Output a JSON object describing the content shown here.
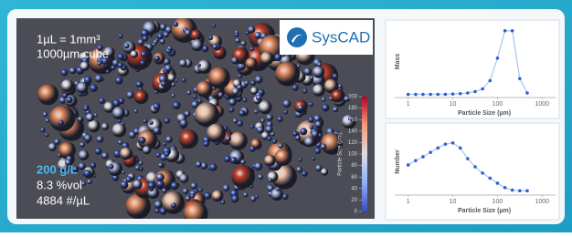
{
  "render": {
    "texts": {
      "volume": "1µL = 1mm³",
      "cube": "1000µm cube",
      "logo": "SysCAD",
      "concentration": "200 g/L",
      "volume_fraction": "8.3 %vol",
      "count": "4884 #/µL"
    },
    "colorbar": {
      "label": "Particle Size (µm)",
      "lim": [
        0,
        200
      ],
      "ticks": [
        0,
        20,
        40,
        60,
        80,
        100,
        120,
        140,
        160,
        180,
        200
      ]
    }
  },
  "chart_data": [
    {
      "type": "line",
      "y_label": "Mass",
      "x_label": "Particle Size (µm)",
      "log_x": true,
      "color": "#2f5fcf",
      "line_color": "#a9c3ef",
      "x": [
        1,
        1.47,
        2.15,
        3.16,
        4.64,
        6.81,
        10,
        14.7,
        21.5,
        31.6,
        46.4,
        68.1,
        100,
        147,
        215,
        316,
        464
      ],
      "values": [
        2,
        2,
        2,
        2,
        2,
        2,
        2.5,
        3,
        4,
        6,
        10,
        22,
        55,
        95,
        95,
        25,
        4
      ],
      "xlim": [
        0.5,
        2000
      ],
      "ylim": [
        0,
        100
      ],
      "xticks": [
        1,
        10,
        100,
        1000
      ]
    },
    {
      "type": "line",
      "y_label": "Number",
      "x_label": "Particle Size (µm)",
      "log_x": true,
      "color": "#2f5fcf",
      "line_color": "#a9c3ef",
      "x": [
        1,
        1.47,
        2.15,
        3.16,
        4.64,
        6.81,
        10,
        14.7,
        21.5,
        31.6,
        46.4,
        68.1,
        100,
        147,
        215,
        316,
        464
      ],
      "values": [
        45,
        52,
        58,
        65,
        72,
        78,
        80,
        72,
        55,
        42,
        32,
        24,
        16,
        9,
        5,
        4,
        4
      ],
      "xlim": [
        0.5,
        2000
      ],
      "ylim": [
        0,
        100
      ],
      "xticks": [
        1,
        10,
        100,
        1000
      ]
    }
  ]
}
